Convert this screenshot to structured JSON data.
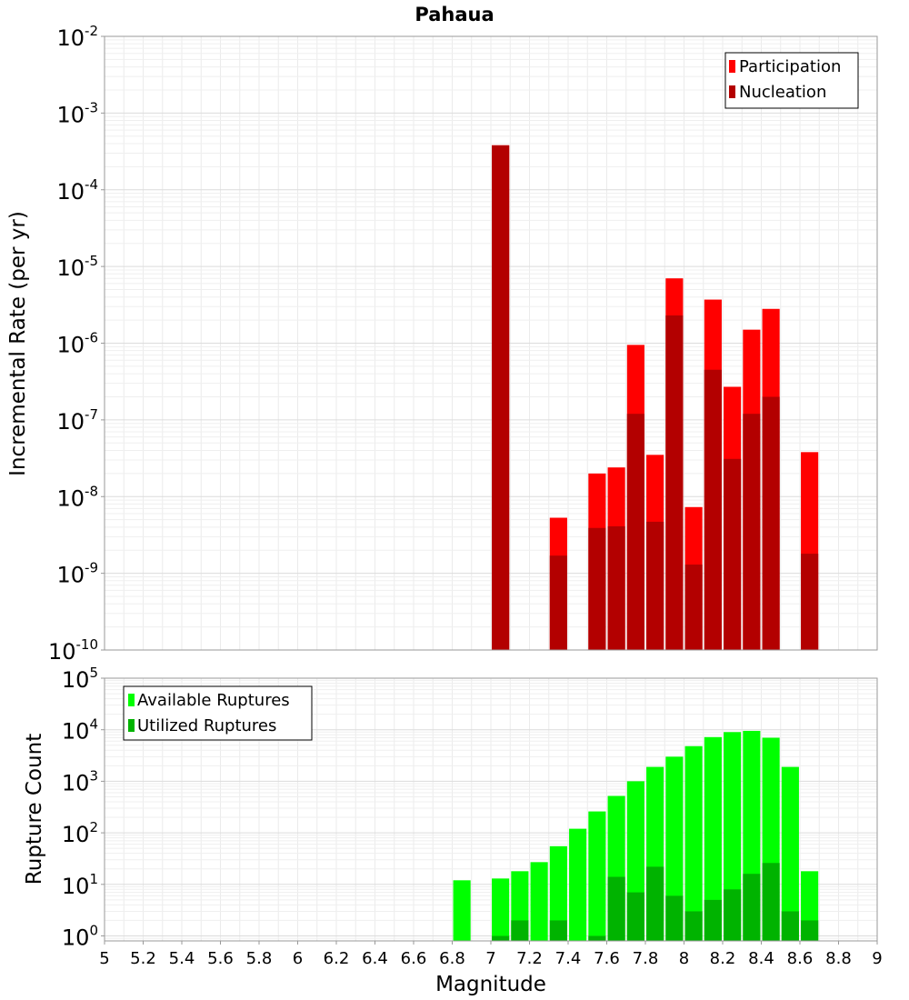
{
  "chart_data": [
    {
      "type": "bar",
      "title": "Pahaua",
      "ylabel": "Incremental Rate (per yr)",
      "xlabel": "",
      "xlim": [
        5,
        9
      ],
      "yscale": "log",
      "ylim": [
        1e-10,
        0.01
      ],
      "y_tick_exponents": [
        "-10",
        "-9",
        "-8",
        "-7",
        "-6",
        "-5",
        "-4",
        "-3",
        "-2"
      ],
      "tick_base": "10",
      "grid": true,
      "legend": "top-right",
      "bar_width": 0.09,
      "overlay": true,
      "x": [
        7.05,
        7.35,
        7.55,
        7.65,
        7.75,
        7.85,
        7.95,
        8.05,
        8.15,
        8.25,
        8.35,
        8.45,
        8.65
      ],
      "series": [
        {
          "name": "Participation",
          "color": "#ff0000",
          "values": [
            0.00038,
            5.3e-09,
            2e-08,
            2.4e-08,
            9.5e-07,
            3.5e-08,
            7e-06,
            7.3e-09,
            3.7e-06,
            2.7e-07,
            1.5e-06,
            2.8e-06,
            3.8e-08
          ]
        },
        {
          "name": "Nucleation",
          "color": "#b30000",
          "values": [
            0.00038,
            1.7e-09,
            3.9e-09,
            4.1e-09,
            1.2e-07,
            4.7e-09,
            2.3e-06,
            1.3e-09,
            4.5e-07,
            3.1e-08,
            1.2e-07,
            2e-07,
            1.8e-09
          ]
        }
      ]
    },
    {
      "type": "bar",
      "title": "",
      "ylabel": "Rupture Count",
      "xlabel": "Magnitude",
      "xlim": [
        5,
        9
      ],
      "x_ticks": [
        "5",
        "5.2",
        "5.4",
        "5.6",
        "5.8",
        "6",
        "6.2",
        "6.4",
        "6.6",
        "6.8",
        "7",
        "7.2",
        "7.4",
        "7.6",
        "7.8",
        "8",
        "8.2",
        "8.4",
        "8.6",
        "8.8",
        "9"
      ],
      "yscale": "log",
      "ylim": [
        0.8,
        100000.0
      ],
      "y_tick_exponents": [
        "0",
        "1",
        "2",
        "3",
        "4",
        "5"
      ],
      "tick_base": "10",
      "grid": true,
      "legend": "top-left",
      "bar_width": 0.09,
      "overlay": true,
      "x": [
        6.85,
        7.05,
        7.15,
        7.25,
        7.35,
        7.45,
        7.55,
        7.65,
        7.75,
        7.85,
        7.95,
        8.05,
        8.15,
        8.25,
        8.35,
        8.45,
        8.55,
        8.65
      ],
      "series": [
        {
          "name": "Available Ruptures",
          "color": "#00ff00",
          "values": [
            12,
            13,
            18,
            27,
            55,
            120,
            260,
            520,
            1000,
            1900,
            3000,
            4800,
            7200,
            9000,
            9500,
            7000,
            1900,
            18
          ]
        },
        {
          "name": "Utilized Ruptures",
          "color": "#00b300",
          "values": [
            0,
            1,
            2,
            0,
            2,
            0,
            1,
            14,
            7,
            22,
            6,
            3,
            5,
            8,
            16,
            26,
            3,
            2
          ]
        }
      ]
    }
  ]
}
